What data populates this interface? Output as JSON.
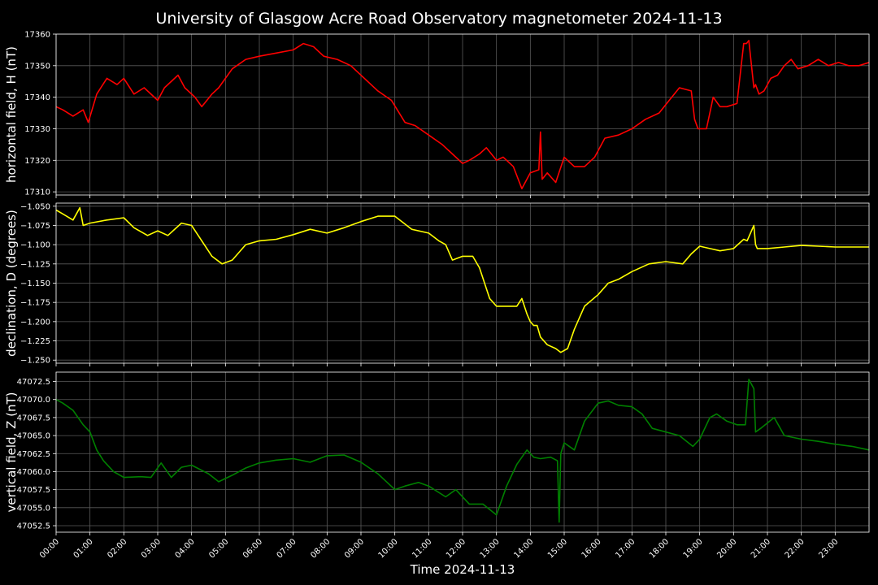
{
  "title": "University of Glasgow Acre Road Observatory magnetometer 2024-11-13",
  "xlabel": "Time 2024-11-13",
  "x_tick_labels": [
    "00:00",
    "01:00",
    "02:00",
    "03:00",
    "04:00",
    "05:00",
    "06:00",
    "07:00",
    "08:00",
    "09:00",
    "10:00",
    "11:00",
    "12:00",
    "13:00",
    "14:00",
    "15:00",
    "16:00",
    "17:00",
    "18:00",
    "19:00",
    "20:00",
    "21:00",
    "22:00",
    "23:00"
  ],
  "chart_data": [
    {
      "type": "line",
      "ylabel": "horizontal field, H (nT)",
      "color": "#ff0000",
      "xlim_hours": [
        0,
        24
      ],
      "ylim": [
        17309,
        17360
      ],
      "y_ticks": [
        17310,
        17320,
        17330,
        17340,
        17350,
        17360
      ],
      "y_tick_labels": [
        "17310",
        "17320",
        "17330",
        "17340",
        "17350",
        "17360"
      ],
      "grid": true,
      "x_hours": [
        0,
        0.2,
        0.5,
        0.8,
        0.95,
        1.2,
        1.5,
        1.8,
        2.0,
        2.3,
        2.6,
        3.0,
        3.2,
        3.6,
        3.8,
        4.1,
        4.3,
        4.6,
        4.8,
        5.2,
        5.6,
        6.0,
        6.5,
        7.0,
        7.3,
        7.6,
        7.9,
        8.3,
        8.7,
        9.1,
        9.5,
        9.9,
        10.3,
        10.6,
        11.0,
        11.4,
        11.7,
        12.0,
        12.2,
        12.5,
        12.7,
        13.0,
        13.2,
        13.5,
        13.75,
        14.0,
        14.25,
        14.3,
        14.35,
        14.5,
        14.75,
        15.0,
        15.3,
        15.6,
        15.9,
        16.2,
        16.6,
        17.0,
        17.4,
        17.8,
        18.1,
        18.4,
        18.75,
        18.85,
        18.95,
        19.2,
        19.4,
        19.6,
        19.8,
        20.1,
        20.3,
        20.38,
        20.45,
        20.6,
        20.65,
        20.75,
        20.9,
        21.1,
        21.3,
        21.5,
        21.7,
        21.9,
        22.2,
        22.5,
        22.8,
        23.1,
        23.4,
        23.7,
        24.0
      ],
      "y": [
        17337,
        17336,
        17334,
        17336,
        17332,
        17341,
        17346,
        17344,
        17346,
        17341,
        17343,
        17339,
        17343,
        17347,
        17343,
        17340,
        17337,
        17341,
        17343,
        17349,
        17352,
        17353,
        17354,
        17355,
        17357,
        17356,
        17353,
        17352,
        17350,
        17346,
        17342,
        17339,
        17332,
        17331,
        17328,
        17325,
        17322,
        17319,
        17320,
        17322,
        17324,
        17320,
        17321,
        17318,
        17311,
        17316,
        17317,
        17329,
        17314,
        17316,
        17313,
        17321,
        17318,
        17318,
        17321,
        17327,
        17328,
        17330,
        17333,
        17335,
        17339,
        17343,
        17342,
        17333,
        17330,
        17330,
        17340,
        17337,
        17337,
        17338,
        17357,
        17357,
        17358,
        17343,
        17344,
        17341,
        17342,
        17346,
        17347,
        17350,
        17352,
        17349,
        17350,
        17352,
        17350,
        17351,
        17350,
        17350,
        17351
      ]
    },
    {
      "type": "line",
      "ylabel": "declination, D (degrees)",
      "color": "#ffff00",
      "xlim_hours": [
        0,
        24
      ],
      "ylim": [
        -1.254,
        -1.046
      ],
      "y_ticks": [
        -1.25,
        -1.225,
        -1.2,
        -1.175,
        -1.15,
        -1.125,
        -1.1,
        -1.075,
        -1.05
      ],
      "y_tick_labels": [
        "−1.250",
        "−1.225",
        "−1.200",
        "−1.175",
        "−1.150",
        "−1.125",
        "−1.100",
        "−1.075",
        "−1.050"
      ],
      "grid": true,
      "x_hours": [
        0,
        0.2,
        0.5,
        0.7,
        0.8,
        1.0,
        1.5,
        2.0,
        2.3,
        2.7,
        3.0,
        3.3,
        3.7,
        4.0,
        4.3,
        4.6,
        4.9,
        5.2,
        5.6,
        6.0,
        6.5,
        7.0,
        7.5,
        8.0,
        8.5,
        9.0,
        9.5,
        10.0,
        10.5,
        11.0,
        11.3,
        11.5,
        11.7,
        12.0,
        12.3,
        12.5,
        12.8,
        13.0,
        13.3,
        13.6,
        13.75,
        13.9,
        14.0,
        14.1,
        14.2,
        14.3,
        14.5,
        14.75,
        14.9,
        15.1,
        15.3,
        15.6,
        16.0,
        16.3,
        16.6,
        17.0,
        17.5,
        18.0,
        18.5,
        18.75,
        19.0,
        19.3,
        19.6,
        20.0,
        20.3,
        20.4,
        20.6,
        20.65,
        20.7,
        21.0,
        21.5,
        22.0,
        22.5,
        23.0,
        23.5,
        24.0
      ],
      "y": [
        -1.055,
        -1.06,
        -1.068,
        -1.052,
        -1.075,
        -1.072,
        -1.068,
        -1.065,
        -1.078,
        -1.088,
        -1.082,
        -1.088,
        -1.072,
        -1.075,
        -1.095,
        -1.115,
        -1.125,
        -1.12,
        -1.1,
        -1.095,
        -1.093,
        -1.087,
        -1.08,
        -1.085,
        -1.078,
        -1.07,
        -1.063,
        -1.063,
        -1.08,
        -1.085,
        -1.095,
        -1.1,
        -1.12,
        -1.115,
        -1.115,
        -1.13,
        -1.17,
        -1.18,
        -1.18,
        -1.18,
        -1.17,
        -1.19,
        -1.2,
        -1.205,
        -1.205,
        -1.22,
        -1.23,
        -1.235,
        -1.24,
        -1.235,
        -1.21,
        -1.18,
        -1.165,
        -1.15,
        -1.145,
        -1.135,
        -1.125,
        -1.122,
        -1.125,
        -1.112,
        -1.102,
        -1.105,
        -1.108,
        -1.105,
        -1.093,
        -1.095,
        -1.075,
        -1.1,
        -1.105,
        -1.105,
        -1.103,
        -1.101,
        -1.102,
        -1.103,
        -1.103,
        -1.103
      ]
    },
    {
      "type": "line",
      "ylabel": "vertical field, Z (nT)",
      "color": "#008000",
      "xlim_hours": [
        0,
        24
      ],
      "ylim": [
        47051.6,
        47073.8
      ],
      "y_ticks": [
        47052.5,
        47055.0,
        47057.5,
        47060.0,
        47062.5,
        47065.0,
        47067.5,
        47070.0,
        47072.5
      ],
      "y_tick_labels": [
        "47052.5",
        "47055.0",
        "47057.5",
        "47060.0",
        "47062.5",
        "47065.0",
        "47067.5",
        "47070.0",
        "47072.5"
      ],
      "grid": true,
      "x_hours": [
        0,
        0.2,
        0.5,
        0.8,
        1.0,
        1.2,
        1.4,
        1.7,
        2.0,
        2.5,
        2.8,
        3.1,
        3.4,
        3.7,
        4.0,
        4.5,
        4.8,
        5.2,
        5.6,
        6.0,
        6.5,
        7.0,
        7.5,
        8.0,
        8.5,
        9.0,
        9.5,
        10.0,
        10.3,
        10.7,
        11.0,
        11.5,
        11.8,
        12.2,
        12.6,
        13.0,
        13.3,
        13.6,
        13.9,
        14.1,
        14.3,
        14.6,
        14.8,
        14.85,
        14.9,
        15.0,
        15.3,
        15.6,
        16.0,
        16.3,
        16.6,
        17.0,
        17.3,
        17.6,
        18.0,
        18.4,
        18.8,
        19.0,
        19.3,
        19.5,
        19.8,
        20.1,
        20.35,
        20.45,
        20.6,
        20.65,
        20.8,
        21.2,
        21.5,
        22.0,
        22.5,
        23.0,
        23.5,
        24.0
      ],
      "y": [
        47070,
        47069.5,
        47068.5,
        47066.5,
        47065.5,
        47063,
        47061.5,
        47060,
        47059.2,
        47059.3,
        47059.2,
        47061.2,
        47059.2,
        47060.6,
        47060.9,
        47059.7,
        47058.6,
        47059.5,
        47060.5,
        47061.2,
        47061.6,
        47061.8,
        47061.3,
        47062.2,
        47062.3,
        47061.3,
        47059.7,
        47057.5,
        47058,
        47058.5,
        47058,
        47056.5,
        47057.5,
        47055.5,
        47055.5,
        47054,
        47058,
        47061,
        47063,
        47062,
        47061.8,
        47062,
        47061.5,
        47053,
        47062.5,
        47064,
        47063,
        47067,
        47069.5,
        47069.8,
        47069.2,
        47069,
        47068,
        47066,
        47065.5,
        47065,
        47063.5,
        47064.5,
        47067.5,
        47068,
        47067,
        47066.5,
        47066.5,
        47072.8,
        47071.5,
        47065.5,
        47066,
        47067.5,
        47065,
        47064.5,
        47064.2,
        47063.8,
        47063.5,
        47063
      ]
    }
  ]
}
